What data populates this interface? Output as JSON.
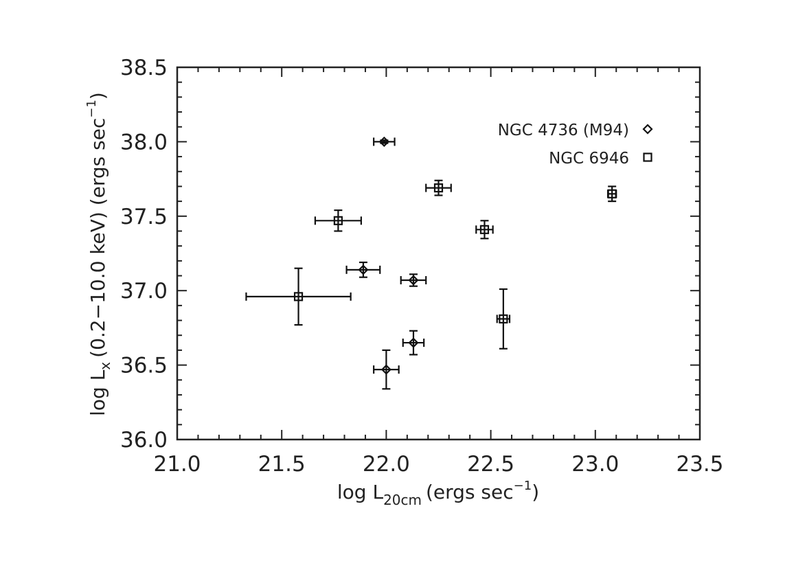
{
  "chart_data": {
    "type": "scatter",
    "xlim": [
      21.0,
      23.5
    ],
    "ylim": [
      36.0,
      38.5
    ],
    "x_ticks": [
      "21.0",
      "21.5",
      "22.0",
      "22.5",
      "23.0",
      "23.5"
    ],
    "y_ticks": [
      "36.0",
      "36.5",
      "37.0",
      "37.5",
      "38.0",
      "38.5"
    ],
    "xlabel_main": "log L",
    "xlabel_sub": "20cm",
    "xlabel_rest": "(ergs sec",
    "xlabel_exp": "−1",
    "xlabel_close": ")",
    "ylabel_main": "log L",
    "ylabel_sub": "x",
    "ylabel_rest": "(0.2−10.0 keV) (ergs sec",
    "ylabel_exp": "−1",
    "ylabel_close": ")",
    "grid": false,
    "legend_position": "top-right",
    "series": [
      {
        "name": "NGC 4736 (M94)",
        "marker": "diamond",
        "points": [
          {
            "x": 21.99,
            "xerr": 0.05,
            "y": 38.0,
            "yerr": 0.01
          },
          {
            "x": 21.89,
            "xerr": 0.08,
            "y": 37.14,
            "yerr": 0.05
          },
          {
            "x": 22.13,
            "xerr": 0.06,
            "y": 37.07,
            "yerr": 0.04
          },
          {
            "x": 22.13,
            "xerr": 0.05,
            "y": 36.65,
            "yerr": 0.08
          },
          {
            "x": 22.0,
            "xerr": 0.06,
            "y": 36.47,
            "yerr": 0.13
          }
        ]
      },
      {
        "name": "NGC 6946",
        "marker": "square",
        "points": [
          {
            "x": 22.25,
            "xerr": 0.06,
            "y": 37.69,
            "yerr": 0.05
          },
          {
            "x": 21.77,
            "xerr": 0.11,
            "y": 37.47,
            "yerr": 0.07
          },
          {
            "x": 22.47,
            "xerr": 0.04,
            "y": 37.41,
            "yerr": 0.06
          },
          {
            "x": 23.08,
            "xerr": 0.02,
            "y": 37.65,
            "yerr": 0.05
          },
          {
            "x": 21.58,
            "xerr": 0.25,
            "y": 36.96,
            "yerr": 0.19
          },
          {
            "x": 22.56,
            "xerr": 0.03,
            "y": 36.81,
            "yerr": 0.2
          }
        ]
      }
    ]
  }
}
